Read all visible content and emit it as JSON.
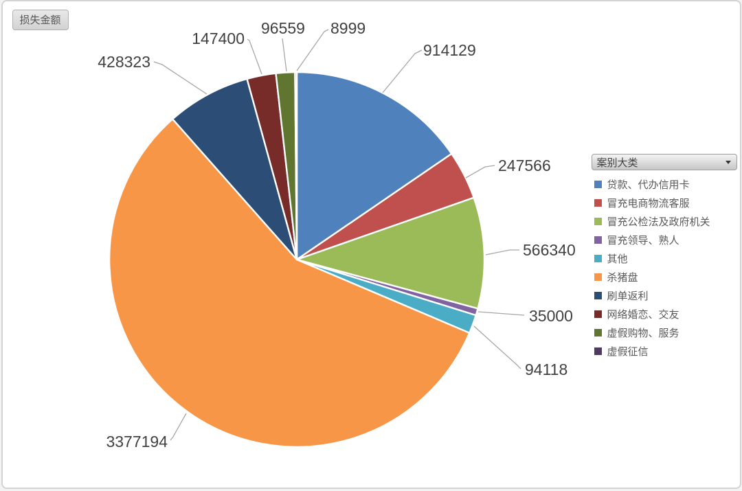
{
  "filter_button": {
    "label": "损失金额"
  },
  "legend": {
    "title": "案别大类"
  },
  "chart_data": {
    "type": "pie",
    "title": "损失金额",
    "legend_title": "案别大类",
    "legend_position": "right",
    "data_labels": "value",
    "start_angle_deg": 0,
    "direction": "clockwise",
    "slices": [
      {
        "label": "贷款、代办信用卡",
        "value": 914129,
        "color": "#4F81BD"
      },
      {
        "label": "冒充电商物流客服",
        "value": 247566,
        "color": "#C0504D"
      },
      {
        "label": "冒充公检法及政府机关",
        "value": 566340,
        "color": "#9BBB59"
      },
      {
        "label": "冒充领导、熟人",
        "value": 35000,
        "color": "#8064A2"
      },
      {
        "label": "其他",
        "value": 94118,
        "color": "#4BACC6"
      },
      {
        "label": "杀猪盘",
        "value": 3377194,
        "color": "#F79646"
      },
      {
        "label": "刷单返利",
        "value": 428323,
        "color": "#2C4D75"
      },
      {
        "label": "网络婚恋、交友",
        "value": 147400,
        "color": "#772C2A"
      },
      {
        "label": "虚假购物、服务",
        "value": 96559,
        "color": "#5F7530"
      },
      {
        "label": "虚假征信",
        "value": 8999,
        "color": "#4D3B62"
      }
    ]
  }
}
